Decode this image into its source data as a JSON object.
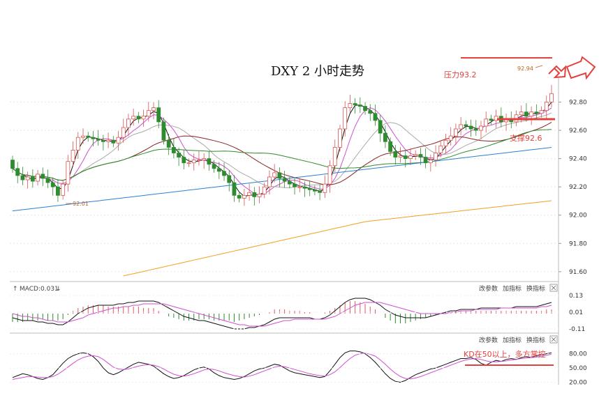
{
  "chart_data": {
    "type": "candlestick",
    "title": "DXY 2 小时走势",
    "main": {
      "y_ticks": [
        "92.80",
        "92.60",
        "92.40",
        "92.20",
        "92.00",
        "91.80",
        "91.60"
      ],
      "ylim": [
        91.55,
        92.97
      ],
      "close": [
        92.33,
        92.28,
        92.25,
        92.27,
        92.24,
        92.29,
        92.26,
        92.23,
        92.2,
        92.14,
        92.22,
        92.38,
        92.46,
        92.55,
        92.56,
        92.55,
        92.54,
        92.53,
        92.52,
        92.53,
        92.51,
        92.55,
        92.62,
        92.68,
        92.7,
        92.68,
        92.7,
        92.74,
        92.76,
        92.66,
        92.53,
        92.48,
        92.44,
        92.41,
        92.37,
        92.37,
        92.39,
        92.39,
        92.4,
        92.36,
        92.33,
        92.31,
        92.28,
        92.23,
        92.14,
        92.12,
        92.14,
        92.16,
        92.13,
        92.15,
        92.2,
        92.27,
        92.3,
        92.26,
        92.24,
        92.22,
        92.2,
        92.2,
        92.19,
        92.18,
        92.17,
        92.16,
        92.22,
        92.35,
        92.48,
        92.61,
        92.76,
        92.79,
        92.78,
        92.77,
        92.74,
        92.72,
        92.67,
        92.58,
        92.52,
        92.45,
        92.41,
        92.42,
        92.4,
        92.42,
        92.43,
        92.41,
        92.37,
        92.39,
        92.44,
        92.49,
        92.53,
        92.56,
        92.61,
        92.64,
        92.63,
        92.61,
        92.6,
        92.63,
        92.68,
        92.67,
        92.7,
        92.66,
        92.68,
        92.66,
        92.71,
        92.73,
        92.7,
        92.73,
        92.72,
        92.74,
        92.8,
        92.86
      ],
      "open": [
        92.39,
        92.33,
        92.28,
        92.25,
        92.27,
        92.24,
        92.29,
        92.26,
        92.23,
        92.2,
        92.14,
        92.22,
        92.38,
        92.46,
        92.55,
        92.56,
        92.55,
        92.54,
        92.53,
        92.52,
        92.53,
        92.51,
        92.55,
        92.62,
        92.68,
        92.7,
        92.68,
        92.7,
        92.74,
        92.76,
        92.66,
        92.53,
        92.48,
        92.44,
        92.41,
        92.37,
        92.37,
        92.39,
        92.39,
        92.4,
        92.36,
        92.33,
        92.31,
        92.28,
        92.23,
        92.14,
        92.12,
        92.14,
        92.16,
        92.13,
        92.15,
        92.2,
        92.27,
        92.3,
        92.26,
        92.24,
        92.22,
        92.2,
        92.2,
        92.19,
        92.18,
        92.17,
        92.16,
        92.22,
        92.35,
        92.48,
        92.61,
        92.76,
        92.79,
        92.78,
        92.77,
        92.74,
        92.72,
        92.67,
        92.58,
        92.52,
        92.45,
        92.41,
        92.42,
        92.4,
        92.42,
        92.43,
        92.41,
        92.37,
        92.39,
        92.44,
        92.49,
        92.53,
        92.56,
        92.61,
        92.64,
        92.63,
        92.61,
        92.6,
        92.63,
        92.68,
        92.67,
        92.7,
        92.66,
        92.68,
        92.66,
        92.71,
        92.73,
        92.7,
        92.73,
        92.72,
        92.74,
        92.8
      ],
      "price_label_low": "92.01",
      "price_label_high": "92.94",
      "ma_colors": [
        "#111111",
        "#d04fd0",
        "#aaaaaa",
        "#8b2323",
        "#2e8b2e",
        "#2a7fd4",
        "#f0a020"
      ]
    },
    "annotations": {
      "resistance": "压力93.2",
      "support": "支撑92.6",
      "kd_note": "KD在50以上，多方掌控"
    },
    "macd": {
      "label": "MACD:0.031",
      "y_ticks": [
        "0.13",
        "0.01",
        "-0.11"
      ],
      "ylim": [
        -0.13,
        0.15
      ],
      "hist": [
        -0.06,
        -0.06,
        -0.06,
        -0.05,
        -0.05,
        -0.05,
        -0.04,
        -0.05,
        -0.05,
        -0.05,
        -0.04,
        -0.01,
        0.02,
        0.04,
        0.05,
        0.06,
        0.06,
        0.06,
        0.06,
        0.05,
        0.05,
        0.05,
        0.05,
        0.05,
        0.05,
        0.05,
        0.04,
        0.04,
        0.04,
        0.02,
        0.0,
        -0.02,
        -0.03,
        -0.04,
        -0.05,
        -0.05,
        -0.05,
        -0.04,
        -0.04,
        -0.04,
        -0.05,
        -0.05,
        -0.05,
        -0.05,
        -0.06,
        -0.05,
        -0.04,
        -0.03,
        -0.02,
        -0.01,
        0.0,
        0.01,
        0.03,
        0.03,
        0.03,
        0.02,
        0.02,
        0.02,
        0.01,
        0.01,
        0.0,
        0.0,
        0.01,
        0.02,
        0.04,
        0.06,
        0.08,
        0.09,
        0.09,
        0.08,
        0.07,
        0.05,
        0.03,
        0.0,
        -0.03,
        -0.05,
        -0.07,
        -0.07,
        -0.07,
        -0.06,
        -0.05,
        -0.04,
        -0.03,
        -0.02,
        -0.01,
        0.0,
        0.01,
        0.01,
        0.02,
        0.02,
        0.02,
        0.02,
        0.02,
        0.02,
        0.02,
        0.02,
        0.02,
        0.02,
        0.02,
        0.02,
        0.02,
        0.02,
        0.02,
        0.02,
        0.02,
        0.02,
        0.03,
        0.03
      ],
      "dif": [
        -0.03,
        -0.04,
        -0.05,
        -0.05,
        -0.05,
        -0.06,
        -0.06,
        -0.07,
        -0.07,
        -0.08,
        -0.08,
        -0.06,
        -0.03,
        0.0,
        0.02,
        0.04,
        0.05,
        0.06,
        0.06,
        0.06,
        0.06,
        0.07,
        0.07,
        0.08,
        0.08,
        0.09,
        0.09,
        0.09,
        0.09,
        0.08,
        0.06,
        0.04,
        0.02,
        0.0,
        -0.02,
        -0.03,
        -0.04,
        -0.05,
        -0.05,
        -0.06,
        -0.07,
        -0.08,
        -0.09,
        -0.1,
        -0.11,
        -0.11,
        -0.11,
        -0.1,
        -0.1,
        -0.09,
        -0.08,
        -0.06,
        -0.04,
        -0.03,
        -0.03,
        -0.03,
        -0.03,
        -0.03,
        -0.03,
        -0.03,
        -0.04,
        -0.04,
        -0.03,
        -0.01,
        0.02,
        0.05,
        0.08,
        0.1,
        0.11,
        0.11,
        0.11,
        0.1,
        0.08,
        0.06,
        0.03,
        0.01,
        -0.01,
        -0.02,
        -0.03,
        -0.03,
        -0.03,
        -0.03,
        -0.03,
        -0.02,
        -0.01,
        0.0,
        0.01,
        0.02,
        0.02,
        0.03,
        0.03,
        0.03,
        0.03,
        0.04,
        0.04,
        0.04,
        0.04,
        0.04,
        0.04,
        0.04,
        0.05,
        0.05,
        0.05,
        0.05,
        0.05,
        0.06,
        0.07,
        0.08
      ],
      "dea": [
        0.0,
        -0.01,
        -0.02,
        -0.02,
        -0.03,
        -0.03,
        -0.04,
        -0.05,
        -0.05,
        -0.06,
        -0.06,
        -0.06,
        -0.05,
        -0.04,
        -0.03,
        -0.01,
        0.0,
        0.01,
        0.02,
        0.03,
        0.04,
        0.04,
        0.05,
        0.05,
        0.06,
        0.06,
        0.07,
        0.07,
        0.07,
        0.07,
        0.07,
        0.06,
        0.05,
        0.04,
        0.03,
        0.02,
        0.01,
        0.0,
        -0.01,
        -0.02,
        -0.03,
        -0.04,
        -0.05,
        -0.06,
        -0.07,
        -0.08,
        -0.08,
        -0.09,
        -0.09,
        -0.09,
        -0.09,
        -0.08,
        -0.07,
        -0.06,
        -0.05,
        -0.05,
        -0.04,
        -0.04,
        -0.04,
        -0.04,
        -0.04,
        -0.04,
        -0.04,
        -0.03,
        -0.02,
        0.0,
        0.02,
        0.04,
        0.06,
        0.07,
        0.08,
        0.08,
        0.08,
        0.08,
        0.07,
        0.06,
        0.05,
        0.04,
        0.03,
        0.02,
        0.01,
        0.0,
        0.0,
        0.0,
        0.0,
        0.0,
        0.0,
        0.01,
        0.01,
        0.02,
        0.02,
        0.02,
        0.03,
        0.03,
        0.03,
        0.03,
        0.03,
        0.04,
        0.04,
        0.04,
        0.04,
        0.04,
        0.04,
        0.04,
        0.04,
        0.05,
        0.05,
        0.06
      ]
    },
    "kd": {
      "y_ticks": [
        "80.00",
        "50.00",
        "20.00"
      ],
      "ylim": [
        15,
        100
      ],
      "k": [
        30,
        34,
        38,
        36,
        32,
        28,
        26,
        30,
        36,
        48,
        60,
        70,
        76,
        80,
        82,
        80,
        74,
        64,
        50,
        40,
        36,
        40,
        46,
        52,
        58,
        62,
        60,
        58,
        54,
        46,
        38,
        32,
        28,
        30,
        34,
        40,
        46,
        50,
        52,
        48,
        40,
        34,
        30,
        28,
        26,
        28,
        32,
        38,
        44,
        48,
        50,
        54,
        58,
        56,
        50,
        44,
        40,
        38,
        36,
        34,
        32,
        30,
        32,
        44,
        58,
        72,
        82,
        86,
        86,
        84,
        80,
        72,
        62,
        50,
        38,
        28,
        22,
        20,
        24,
        30,
        36,
        40,
        44,
        48,
        50,
        54,
        58,
        62,
        66,
        70,
        70,
        72,
        68,
        60,
        56,
        62,
        66,
        64,
        68,
        70,
        68,
        72,
        74,
        72,
        76,
        78,
        80,
        82
      ],
      "d": [
        26,
        28,
        30,
        32,
        32,
        31,
        30,
        30,
        32,
        37,
        44,
        52,
        60,
        67,
        72,
        75,
        76,
        74,
        68,
        60,
        52,
        48,
        47,
        48,
        51,
        54,
        56,
        57,
        56,
        53,
        48,
        42,
        37,
        34,
        33,
        35,
        38,
        42,
        46,
        48,
        47,
        44,
        40,
        37,
        34,
        32,
        31,
        33,
        36,
        40,
        44,
        48,
        52,
        54,
        53,
        50,
        47,
        44,
        41,
        38,
        36,
        34,
        33,
        36,
        42,
        51,
        61,
        70,
        77,
        80,
        81,
        79,
        75,
        67,
        58,
        48,
        39,
        32,
        28,
        27,
        29,
        32,
        36,
        40,
        44,
        48,
        52,
        56,
        60,
        64,
        67,
        69,
        70,
        68,
        65,
        63,
        63,
        64,
        65,
        67,
        68,
        70,
        71,
        72,
        73,
        75,
        77,
        79
      ]
    },
    "toolbar": [
      "改参数",
      "加指标",
      "换指标"
    ]
  }
}
